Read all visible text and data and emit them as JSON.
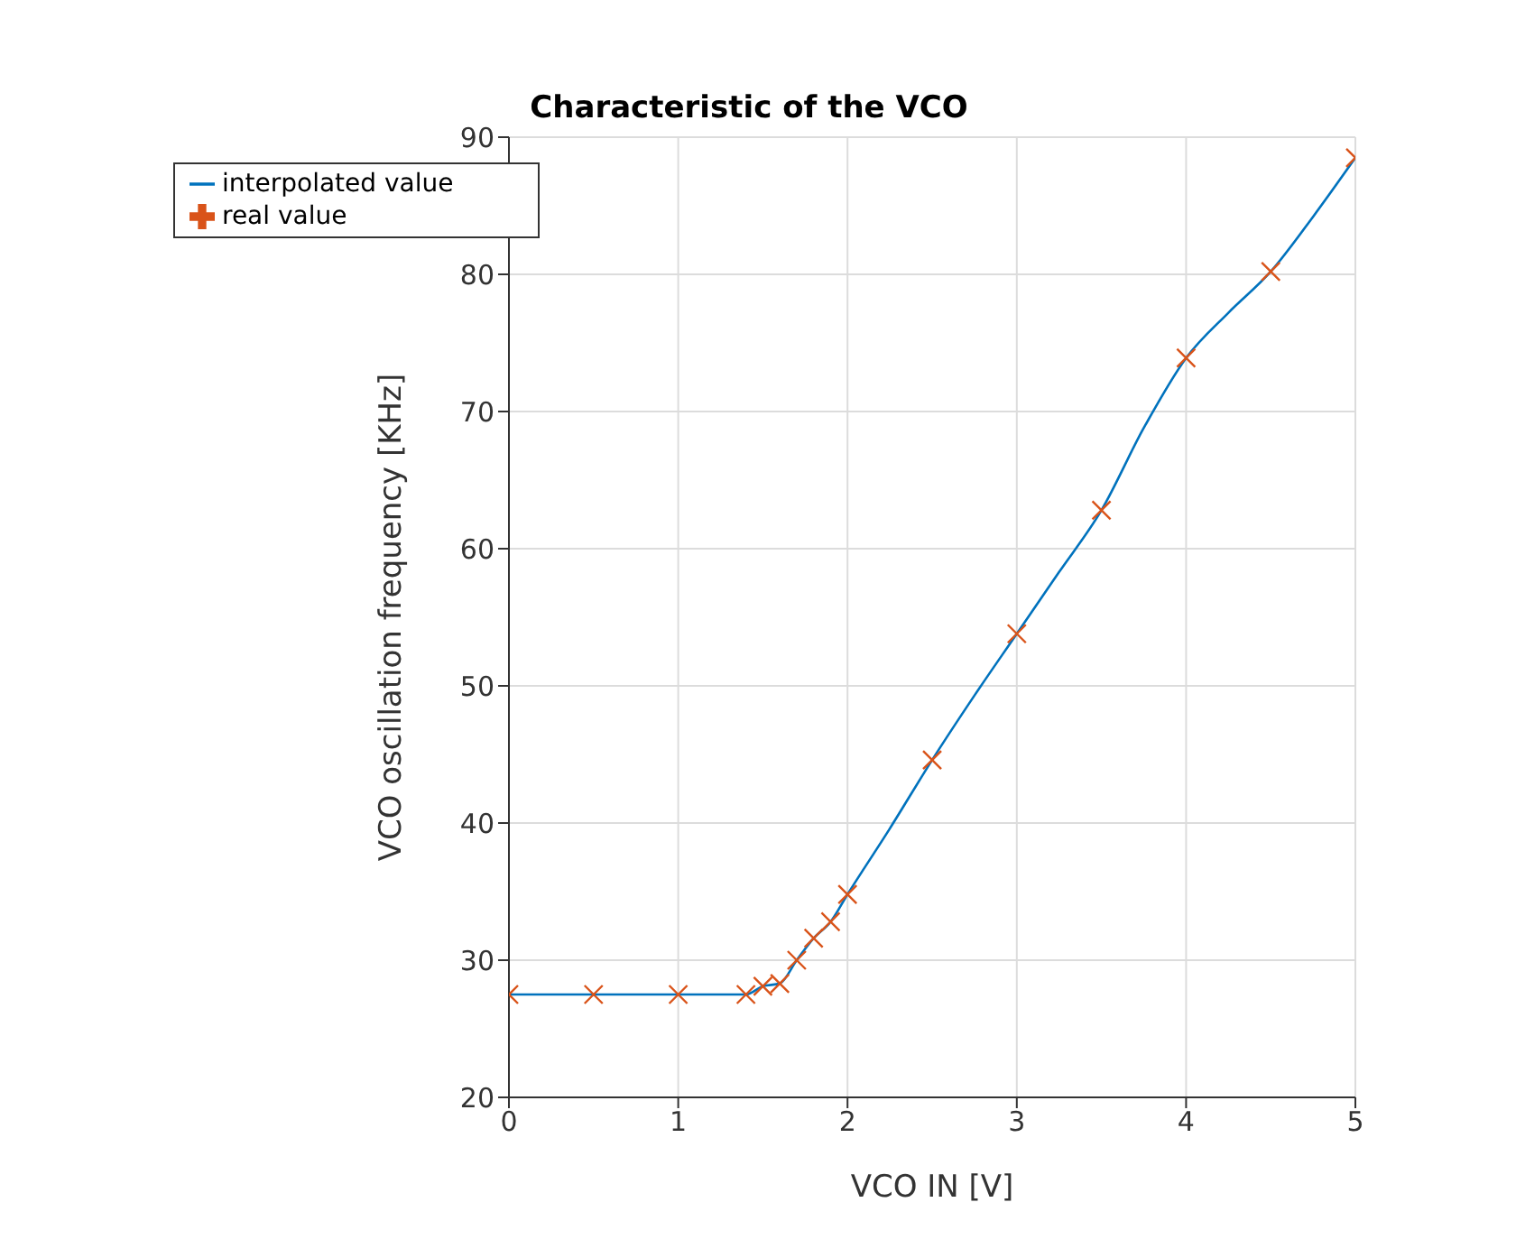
{
  "chart_data": {
    "type": "line",
    "title": "Characteristic of the VCO",
    "xlabel": "VCO IN [V]",
    "ylabel": "VCO oscillation frequency [KHz]",
    "xlim": [
      0,
      5
    ],
    "xticks": [
      0,
      1,
      2,
      3,
      4,
      5
    ],
    "ylim": [
      20,
      90
    ],
    "yticks": [
      20,
      30,
      40,
      50,
      60,
      70,
      80,
      90
    ],
    "grid": true,
    "legend": "top left",
    "series": [
      {
        "name": "interpolated value",
        "marker": "none",
        "line_style": "solid",
        "color": "#0072bd",
        "x": [
          0,
          0.5,
          1,
          1.4,
          1.5,
          1.6,
          1.7,
          1.8,
          1.9,
          2,
          2.25,
          2.5,
          2.75,
          3,
          3.25,
          3.5,
          3.75,
          4,
          4.25,
          4.5,
          4.75,
          5
        ],
        "values": [
          27.5,
          27.5,
          27.5,
          27.5,
          28.1,
          28.3,
          30,
          31.6,
          32.8,
          34.8,
          39.6,
          44.6,
          49.3,
          53.8,
          58.3,
          62.8,
          68.8,
          73.9,
          77.2,
          80.2,
          84.2,
          88.5
        ]
      },
      {
        "name": "real value",
        "type": "scatter",
        "marker": "cross",
        "color": "#d95319",
        "x": [
          0,
          0.5,
          1,
          1.4,
          1.5,
          1.6,
          1.7,
          1.8,
          1.9,
          2,
          2.5,
          3,
          3.5,
          4,
          4.5,
          5
        ],
        "values": [
          27.5,
          27.5,
          27.5,
          27.5,
          28.1,
          28.3,
          30,
          31.6,
          32.8,
          34.8,
          44.6,
          53.8,
          62.8,
          73.9,
          80.2,
          88.5
        ]
      }
    ]
  }
}
